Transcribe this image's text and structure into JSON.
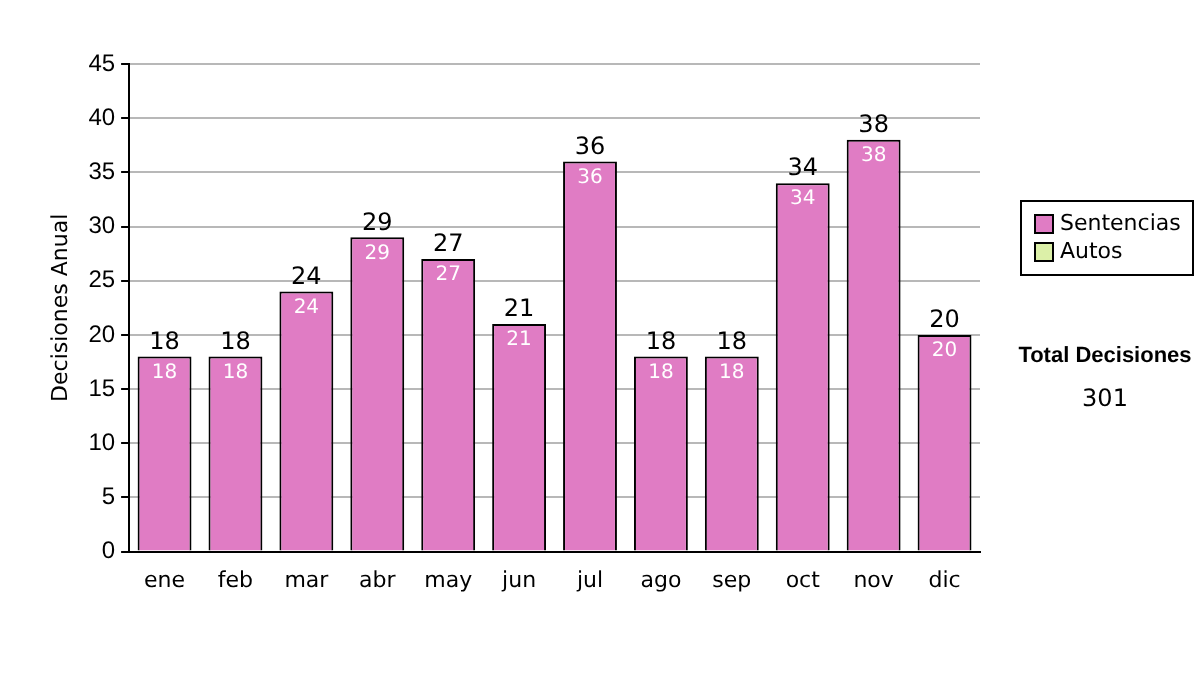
{
  "chart_data": {
    "type": "bar",
    "ylabel": "Decisiones Anual",
    "categories": [
      "ene",
      "feb",
      "mar",
      "abr",
      "may",
      "jun",
      "jul",
      "ago",
      "sep",
      "oct",
      "nov",
      "dic"
    ],
    "series": [
      {
        "name": "Sentencias",
        "color": "#e07cc4",
        "values": [
          18,
          18,
          24,
          29,
          27,
          21,
          36,
          18,
          18,
          34,
          38,
          20
        ],
        "value_labels": [
          "18",
          "18",
          "24",
          "29",
          "27",
          "21",
          "36",
          "18",
          "18",
          "34",
          "38",
          "20"
        ]
      },
      {
        "name": "Autos",
        "color": "#dcf0a8",
        "values": [
          0,
          0,
          0,
          0,
          0,
          0,
          0,
          0,
          0,
          0,
          0,
          0
        ]
      }
    ],
    "stacked": true,
    "totals": [
      "18",
      "18",
      "24",
      "29",
      "27",
      "21",
      "36",
      "18",
      "18",
      "34",
      "38",
      "20"
    ],
    "ylim": [
      0,
      45
    ],
    "yticks": [
      0,
      5,
      10,
      15,
      20,
      25,
      30,
      35,
      40,
      45
    ],
    "grid": "y",
    "legend": "right",
    "annotations": [
      "Total Decisiones",
      "301"
    ]
  }
}
